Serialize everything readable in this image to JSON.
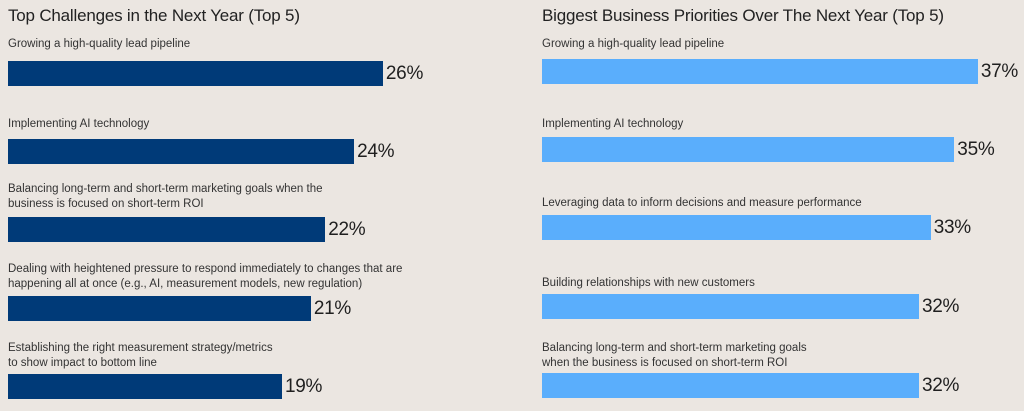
{
  "chart_data": [
    {
      "type": "bar",
      "orientation": "horizontal",
      "title": "Top Challenges in the Next Year (Top 5)",
      "categories": [
        "Growing a high-quality lead pipeline",
        "Implementing AI technology",
        "Balancing long-term and short-term marketing goals when the\nbusiness is focused on short-term ROI",
        "Dealing with heightened pressure to respond immediately to changes that are\nhappening all at once (e.g., AI, measurement models, new regulation)",
        "Establishing the right measurement strategy/metrics\nto show impact to bottom line"
      ],
      "values": [
        26,
        24,
        22,
        21,
        19
      ],
      "value_labels": [
        "26%",
        "24%",
        "22%",
        "21%",
        "19%"
      ],
      "xlim": [
        0,
        40
      ],
      "unit": "%",
      "color": "#003a78"
    },
    {
      "type": "bar",
      "orientation": "horizontal",
      "title": "Biggest Business Priorities Over The Next Year (Top 5)",
      "categories": [
        "Growing a high-quality lead pipeline",
        "Implementing AI technology",
        "Leveraging data to inform decisions and measure performance",
        "Building relationships with new customers",
        "Balancing long-term and short-term marketing goals\nwhen the business is focused on short-term ROI"
      ],
      "values": [
        37,
        35,
        33,
        32,
        32
      ],
      "value_labels": [
        "37%",
        "35%",
        "33%",
        "32%",
        "32%"
      ],
      "xlim": [
        0,
        40
      ],
      "unit": "%",
      "color": "#5aaefc"
    }
  ]
}
